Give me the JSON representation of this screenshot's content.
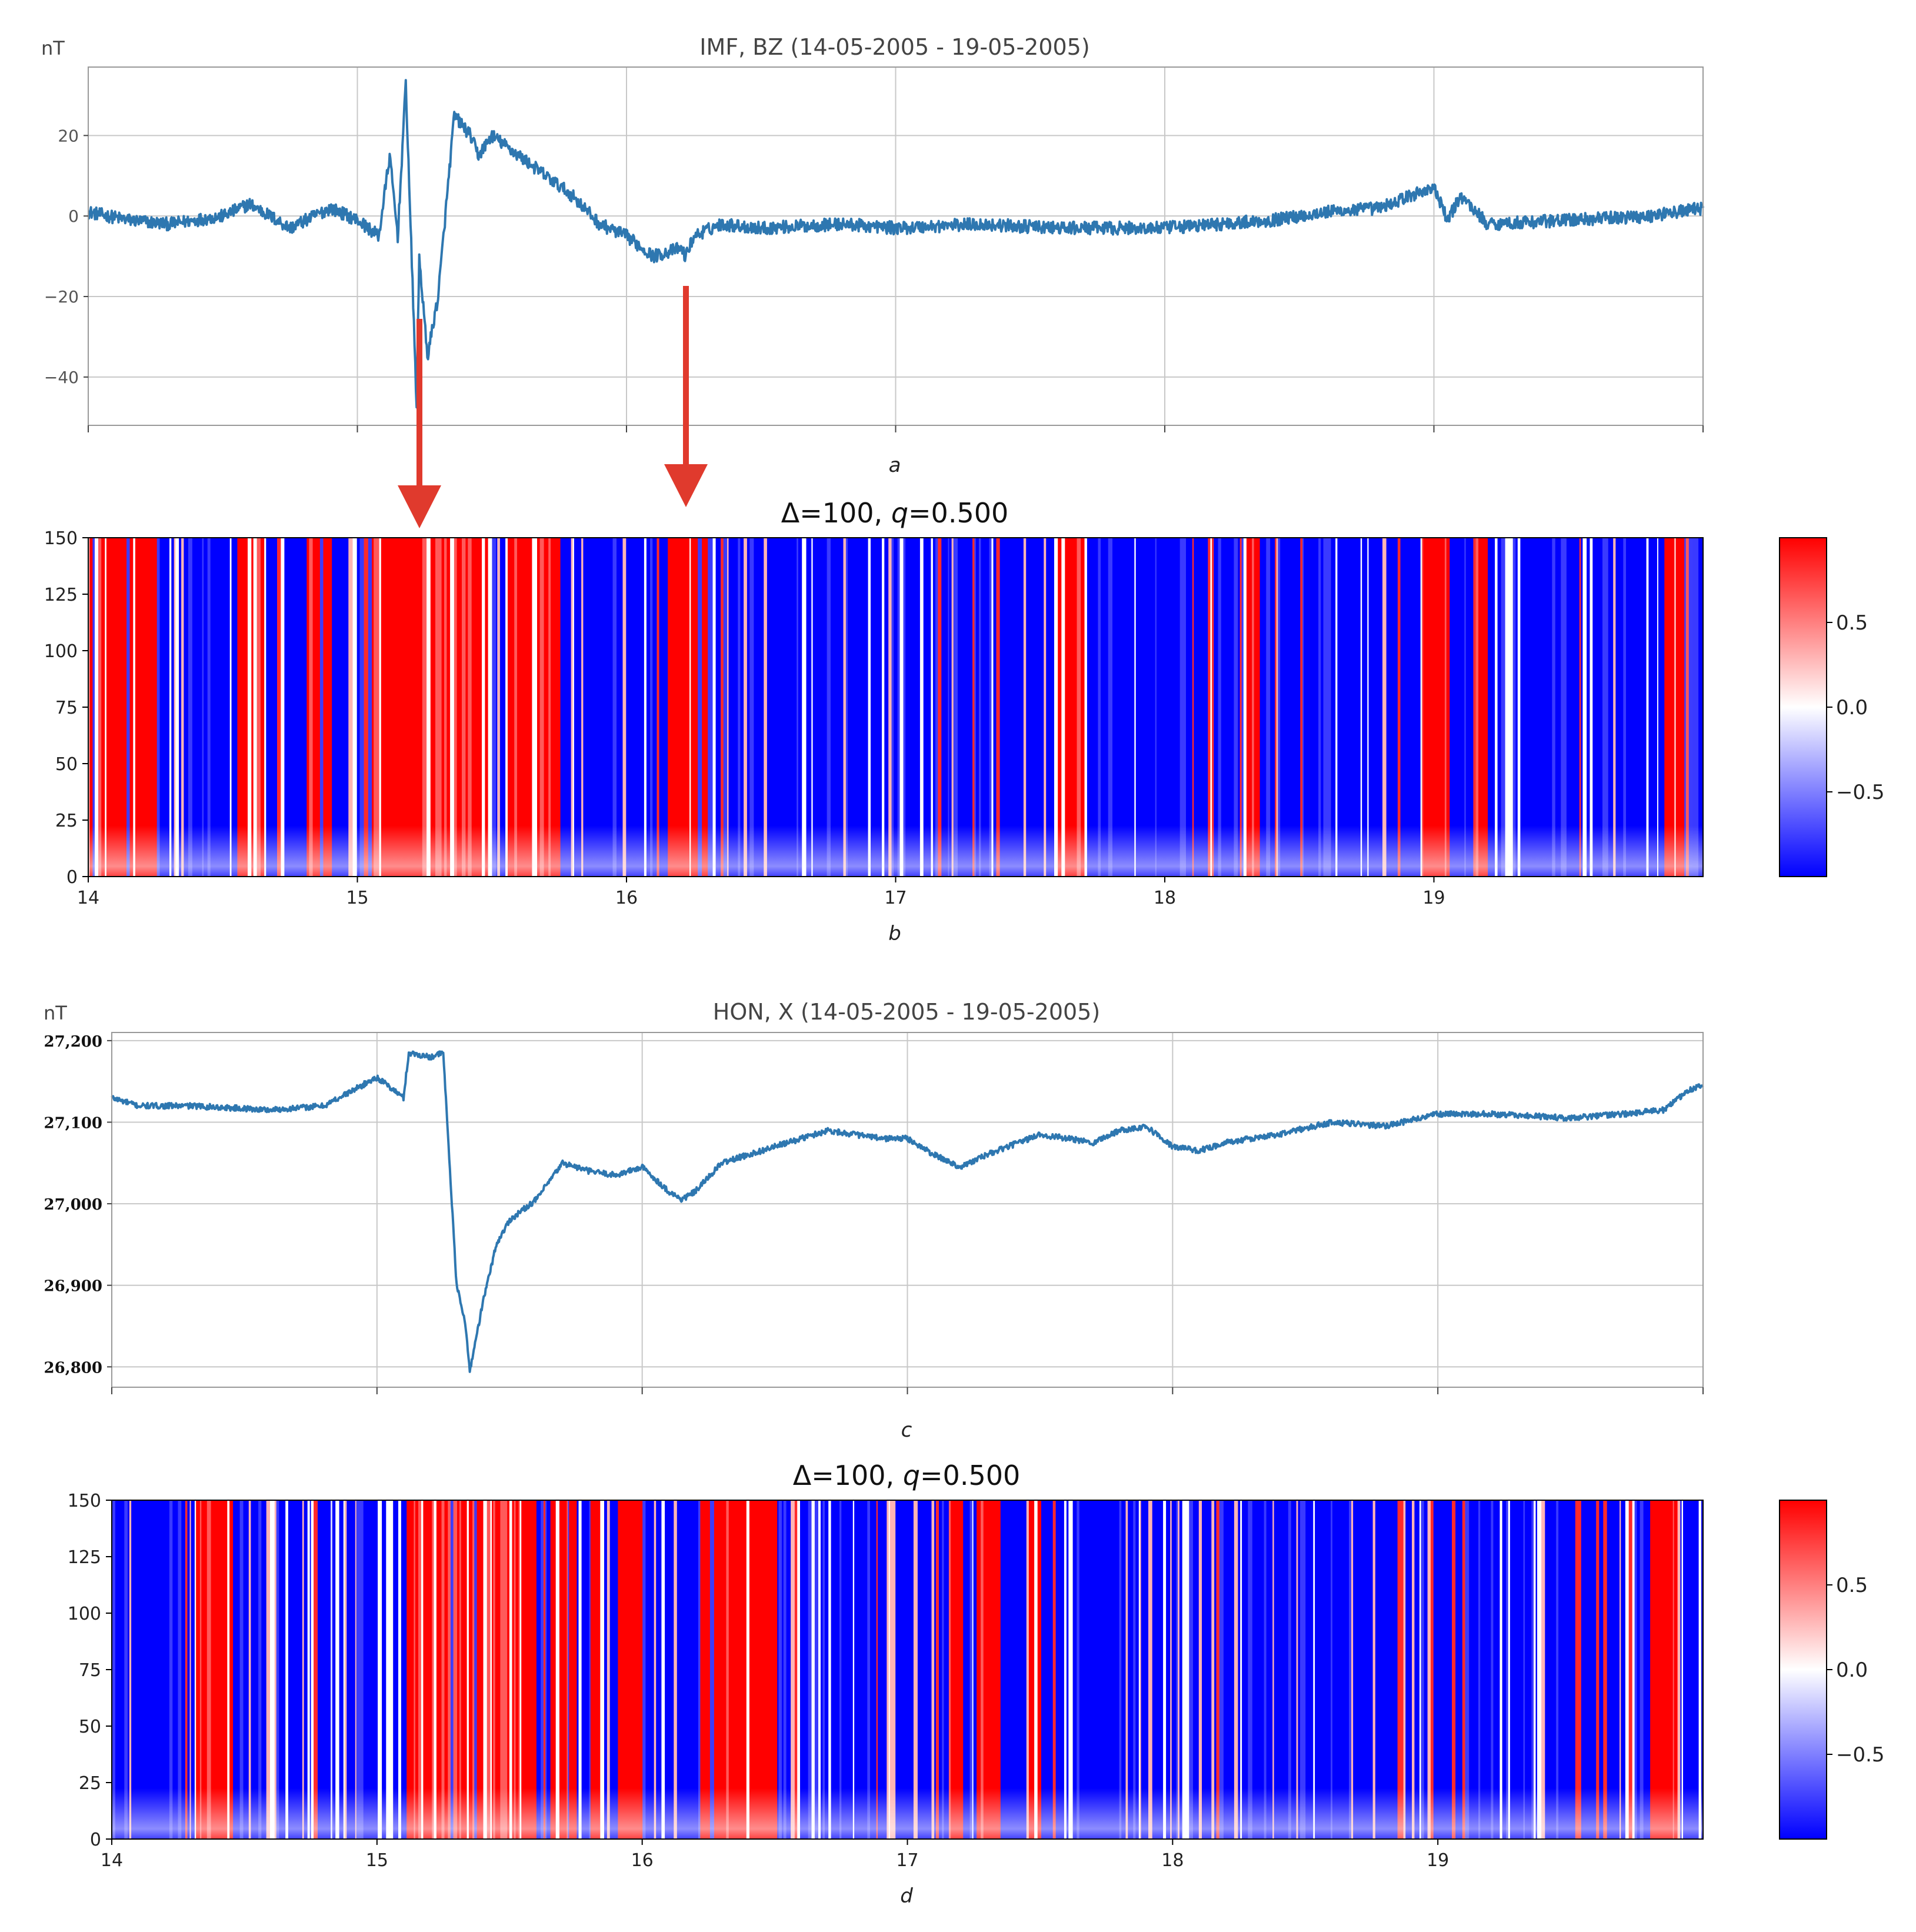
{
  "chart_data": [
    {
      "panel": "a",
      "type": "line",
      "title": "IMF, BZ  (14-05-2005 - 19-05-2005)",
      "ylabel": "nT",
      "xlim": [
        14,
        20
      ],
      "ylim": [
        -52,
        37
      ],
      "yticks": [
        20,
        0,
        -20,
        -40
      ],
      "ytick_labels": [
        "20",
        "0",
        "−20",
        "−40"
      ],
      "xgrid": [
        14,
        15,
        16,
        17,
        18,
        19,
        20
      ],
      "color": "#2e77b0",
      "series": [
        {
          "name": "BZ",
          "x": [
            14.0,
            14.15,
            14.3,
            14.5,
            14.6,
            14.75,
            14.9,
            15.0,
            15.08,
            15.12,
            15.15,
            15.18,
            15.22,
            15.23,
            15.26,
            15.3,
            15.36,
            15.42,
            15.45,
            15.5,
            15.6,
            15.7,
            15.8,
            15.9,
            16.0,
            16.1,
            16.2,
            16.22,
            16.25,
            16.35,
            16.5,
            16.8,
            17.0,
            17.3,
            17.6,
            18.0,
            18.4,
            18.6,
            18.8,
            18.95,
            19.0,
            19.05,
            19.1,
            19.2,
            19.5,
            19.8,
            20.0
          ],
          "y": [
            1,
            -1,
            -2,
            0,
            3,
            -3,
            2,
            -1,
            -5,
            15,
            -5,
            33,
            -47,
            -10,
            -35,
            -20,
            25,
            20,
            15,
            20,
            15,
            10,
            5,
            -2,
            -5,
            -10,
            -8,
            -10,
            -5,
            -2,
            -3,
            -2,
            -3,
            -2,
            -3,
            -3,
            -1,
            1,
            2,
            6,
            7,
            -1,
            5,
            -2,
            -1,
            0,
            2
          ]
        }
      ]
    },
    {
      "panel": "b",
      "type": "heatmap",
      "title": "Δ=100, q=0.500",
      "xlim": [
        14,
        20
      ],
      "ylim": [
        0,
        150
      ],
      "xticks": [
        14,
        15,
        16,
        17,
        18,
        19
      ],
      "xtick_labels": [
        "14",
        "15",
        "16",
        "17",
        "18",
        "19"
      ],
      "yticks": [
        0,
        25,
        50,
        75,
        100,
        125,
        150
      ],
      "ytick_labels": [
        "0",
        "25",
        "50",
        "75",
        "100",
        "125",
        "150"
      ],
      "colormap": "bwr",
      "colorbar_ticks": [
        0.5,
        0.0,
        -0.5
      ],
      "colorbar_tick_labels": [
        "0.5",
        "0.0",
        "−0.5"
      ],
      "colorbar_range": [
        -1,
        1
      ],
      "red_regions": [
        [
          14.0,
          14.25
        ],
        [
          14.55,
          14.65
        ],
        [
          14.8,
          14.9
        ],
        [
          15.05,
          15.5
        ],
        [
          15.55,
          15.75
        ],
        [
          16.15,
          16.3
        ],
        [
          17.6,
          17.7
        ],
        [
          18.3,
          18.35
        ],
        [
          18.95,
          19.05
        ],
        [
          19.15,
          19.2
        ],
        [
          19.85,
          19.95
        ]
      ],
      "arrows_from_panel_a": [
        15.23,
        16.22
      ]
    },
    {
      "panel": "c",
      "type": "line",
      "title": "HON, X  (14-05-2005 - 19-05-2005)",
      "ylabel": "nT",
      "xlim": [
        14,
        20
      ],
      "ylim": [
        26775,
        27210
      ],
      "yticks": [
        27200,
        27100,
        27000,
        26900,
        26800
      ],
      "ytick_labels": [
        "27,200",
        "27,100",
        "27,000",
        "26,900",
        "26,800"
      ],
      "xgrid": [
        14,
        15,
        16,
        17,
        18,
        19,
        20
      ],
      "color": "#2e77b0",
      "series": [
        {
          "name": "X",
          "x": [
            14.0,
            14.1,
            14.3,
            14.6,
            14.8,
            15.0,
            15.1,
            15.12,
            15.2,
            15.25,
            15.3,
            15.33,
            15.35,
            15.4,
            15.45,
            15.5,
            15.6,
            15.7,
            15.8,
            15.9,
            16.0,
            16.1,
            16.15,
            16.2,
            16.3,
            16.5,
            16.7,
            16.9,
            17.0,
            17.1,
            17.2,
            17.3,
            17.5,
            17.7,
            17.8,
            17.9,
            18.0,
            18.1,
            18.2,
            18.4,
            18.6,
            18.8,
            19.0,
            19.2,
            19.5,
            19.7,
            19.85,
            19.95,
            20.0
          ],
          "y": [
            27130,
            27120,
            27120,
            27115,
            27120,
            27155,
            27130,
            27185,
            27180,
            27185,
            26900,
            26860,
            26795,
            26880,
            26950,
            26980,
            27005,
            27050,
            27040,
            27035,
            27045,
            27015,
            27005,
            27015,
            27050,
            27070,
            27090,
            27080,
            27080,
            27060,
            27045,
            27060,
            27085,
            27075,
            27090,
            27095,
            27070,
            27065,
            27075,
            27085,
            27100,
            27095,
            27110,
            27110,
            27105,
            27110,
            27115,
            27140,
            27145
          ]
        }
      ]
    },
    {
      "panel": "d",
      "type": "heatmap",
      "title": "Δ=100, q=0.500",
      "xlim": [
        14,
        20
      ],
      "ylim": [
        0,
        150
      ],
      "xticks": [
        14,
        15,
        16,
        17,
        18,
        19
      ],
      "xtick_labels": [
        "14",
        "15",
        "16",
        "17",
        "18",
        "19"
      ],
      "yticks": [
        0,
        25,
        50,
        75,
        100,
        125,
        150
      ],
      "ytick_labels": [
        "0",
        "25",
        "50",
        "75",
        "100",
        "125",
        "150"
      ],
      "colormap": "bwr",
      "colorbar_ticks": [
        0.5,
        0.0,
        -0.5
      ],
      "colorbar_tick_labels": [
        "0.5",
        "0.0",
        "−0.5"
      ],
      "colorbar_range": [
        -1,
        1
      ],
      "red_regions": [
        [
          14.3,
          14.45
        ],
        [
          15.1,
          15.6
        ],
        [
          15.65,
          15.75
        ],
        [
          15.8,
          15.85
        ],
        [
          15.9,
          16.0
        ],
        [
          16.2,
          16.5
        ],
        [
          17.15,
          17.2
        ],
        [
          17.25,
          17.35
        ],
        [
          17.45,
          17.5
        ],
        [
          19.8,
          19.9
        ]
      ]
    }
  ]
}
